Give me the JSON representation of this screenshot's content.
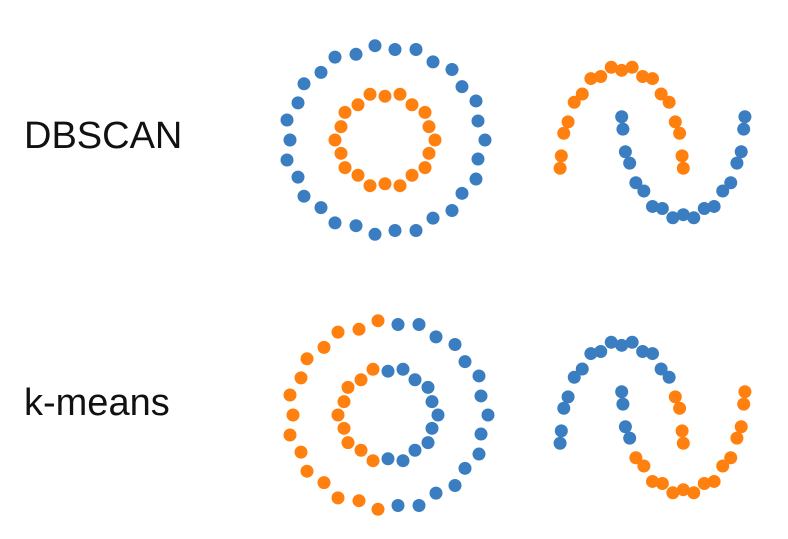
{
  "rows": [
    "DBSCAN",
    "k-means"
  ],
  "chart_data": [
    {
      "type": "scatter",
      "xlim": [
        -1.05,
        1.05
      ],
      "ylim": [
        -1.05,
        1.05
      ],
      "series": [
        {
          "color": "#3a7dc0",
          "x": [
            1,
            0.93,
            0.91,
            0.77,
            0.67,
            0.48,
            0.31,
            0.1,
            -0.1,
            -0.29,
            -0.5,
            -0.64,
            -0.81,
            -0.87,
            -0.98,
            -0.95,
            -0.98,
            -0.87,
            -0.81,
            -0.64,
            -0.5,
            -0.29,
            -0.1,
            0.1,
            0.31,
            0.48,
            0.67,
            0.77,
            0.91,
            0.93
          ],
          "y": [
            0,
            0.2,
            0.41,
            0.56,
            0.74,
            0.82,
            0.95,
            0.95,
            0.99,
            0.9,
            0.87,
            0.71,
            0.59,
            0.39,
            0.21,
            0,
            -0.21,
            -0.39,
            -0.59,
            -0.71,
            -0.87,
            -0.9,
            -0.99,
            -0.95,
            -0.95,
            -0.82,
            -0.74,
            -0.56,
            -0.41,
            -0.2
          ]
        },
        {
          "color": "#ff800e",
          "x": [
            0.5,
            0.44,
            0.4,
            0.27,
            0.15,
            0,
            -0.15,
            -0.27,
            -0.4,
            -0.44,
            -0.5,
            -0.44,
            -0.4,
            -0.27,
            -0.15,
            0,
            0.15,
            0.27,
            0.4,
            0.44
          ],
          "y": [
            0,
            0.14,
            0.29,
            0.37,
            0.48,
            0.46,
            0.48,
            0.37,
            0.29,
            0.14,
            0,
            -0.14,
            -0.29,
            -0.37,
            -0.48,
            -0.46,
            -0.48,
            -0.37,
            -0.29,
            -0.14
          ]
        }
      ]
    },
    {
      "type": "scatter",
      "xlim": [
        -1.05,
        2.05
      ],
      "ylim": [
        -0.55,
        1.05
      ],
      "series": [
        {
          "color": "#ff800e",
          "x": [
            1,
            0.98,
            0.94,
            0.87,
            0.77,
            0.64,
            0.5,
            0.34,
            0.17,
            0,
            -0.17,
            -0.34,
            -0.5,
            -0.64,
            -0.77,
            -0.87,
            -0.94,
            -0.98,
            -1
          ],
          "y": [
            0,
            0.12,
            0.34,
            0.45,
            0.64,
            0.72,
            0.87,
            0.89,
            0.98,
            0.95,
            0.98,
            0.89,
            0.87,
            0.72,
            0.64,
            0.45,
            0.34,
            0.12,
            0
          ]
        },
        {
          "color": "#3a7dc0",
          "x": [
            0,
            0.02,
            0.06,
            0.13,
            0.23,
            0.36,
            0.5,
            0.66,
            0.83,
            1,
            1.17,
            1.34,
            1.5,
            1.64,
            1.77,
            1.87,
            1.94,
            1.98,
            2
          ],
          "y": [
            0.5,
            0.38,
            0.16,
            0.05,
            -0.14,
            -0.22,
            -0.37,
            -0.39,
            -0.48,
            -0.45,
            -0.48,
            -0.39,
            -0.37,
            -0.22,
            -0.14,
            0.05,
            0.16,
            0.38,
            0.5
          ]
        }
      ]
    },
    {
      "type": "scatter",
      "xlim": [
        -1.05,
        1.05
      ],
      "ylim": [
        -1.05,
        1.05
      ],
      "series": [
        {
          "color": "#3a7dc0",
          "x": [
            1,
            0.93,
            0.91,
            0.77,
            0.67,
            0.48,
            0.31,
            0.1,
            0.1,
            0.31,
            0.48,
            0.67,
            0.77,
            0.91,
            0.93,
            0.5,
            0.44,
            0.4,
            0.27,
            0.15,
            0,
            0,
            0.15,
            0.27,
            0.4,
            0.44
          ],
          "y": [
            0,
            0.2,
            0.41,
            0.56,
            0.74,
            0.82,
            0.95,
            0.95,
            -0.95,
            -0.95,
            -0.82,
            -0.74,
            -0.56,
            -0.41,
            -0.2,
            0,
            0.14,
            0.29,
            0.37,
            0.48,
            0.46,
            -0.46,
            -0.48,
            -0.37,
            -0.29,
            -0.14
          ]
        },
        {
          "color": "#ff800e",
          "x": [
            -0.1,
            -0.29,
            -0.5,
            -0.64,
            -0.81,
            -0.87,
            -0.98,
            -0.95,
            -0.98,
            -0.87,
            -0.81,
            -0.64,
            -0.5,
            -0.29,
            -0.1,
            -0.15,
            -0.27,
            -0.4,
            -0.44,
            -0.5,
            -0.44,
            -0.4,
            -0.27,
            -0.15
          ],
          "y": [
            0.99,
            0.9,
            0.87,
            0.71,
            0.59,
            0.39,
            0.21,
            0,
            -0.21,
            -0.39,
            -0.59,
            -0.71,
            -0.87,
            -0.9,
            -0.99,
            0.48,
            0.37,
            0.29,
            0.14,
            0,
            -0.14,
            -0.29,
            -0.37,
            -0.48
          ]
        }
      ]
    },
    {
      "type": "scatter",
      "xlim": [
        -1.05,
        2.05
      ],
      "ylim": [
        -0.55,
        1.05
      ],
      "series": [
        {
          "color": "#3a7dc0",
          "x": [
            0.77,
            0.64,
            0.5,
            0.34,
            0.17,
            0,
            -0.17,
            -0.34,
            -0.5,
            -0.64,
            -0.77,
            -0.87,
            -0.94,
            -0.98,
            -1,
            0,
            0.02,
            0.06,
            0.13
          ],
          "y": [
            0.64,
            0.72,
            0.87,
            0.89,
            0.98,
            0.95,
            0.98,
            0.89,
            0.87,
            0.72,
            0.64,
            0.45,
            0.34,
            0.12,
            0,
            0.5,
            0.38,
            0.16,
            0.05
          ]
        },
        {
          "color": "#ff800e",
          "x": [
            1,
            0.98,
            0.94,
            0.87,
            0.23,
            0.36,
            0.5,
            0.66,
            0.83,
            1,
            1.17,
            1.34,
            1.5,
            1.64,
            1.77,
            1.87,
            1.94,
            1.98,
            2
          ],
          "y": [
            0,
            0.12,
            0.34,
            0.45,
            -0.14,
            -0.22,
            -0.37,
            -0.39,
            -0.48,
            -0.45,
            -0.48,
            -0.39,
            -0.37,
            -0.22,
            -0.14,
            0.05,
            0.16,
            0.38,
            0.5
          ]
        }
      ]
    }
  ]
}
